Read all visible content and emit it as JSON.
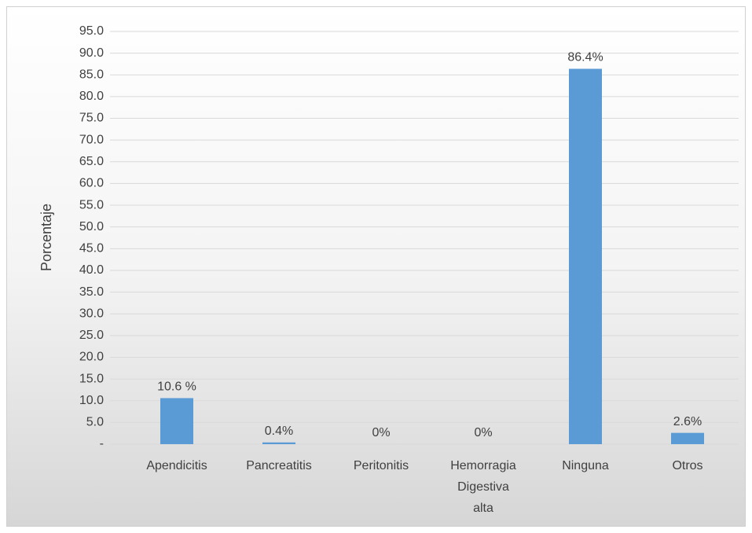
{
  "chart_data": {
    "type": "bar",
    "ylabel": "Porcentaje",
    "categories": [
      "Apendicitis",
      "Pancreatitis",
      "Peritonitis",
      "Hemorragia Digestiva alta",
      "Ninguna",
      "Otros"
    ],
    "values": [
      10.6,
      0.4,
      0,
      0,
      86.4,
      2.6
    ],
    "value_labels": [
      "10.6 %",
      "0.4%",
      "0%",
      "0%",
      "86.4%",
      "2.6%"
    ],
    "color": "#5b9bd5",
    "ylim": [
      0,
      95
    ],
    "yticks": [
      {
        "value": 0,
        "label": "-"
      },
      {
        "value": 5,
        "label": "5.0"
      },
      {
        "value": 10,
        "label": "10.0"
      },
      {
        "value": 15,
        "label": "15.0"
      },
      {
        "value": 20,
        "label": "20.0"
      },
      {
        "value": 25,
        "label": "25.0"
      },
      {
        "value": 30,
        "label": "30.0"
      },
      {
        "value": 35,
        "label": "35.0"
      },
      {
        "value": 40,
        "label": "40.0"
      },
      {
        "value": 45,
        "label": "45.0"
      },
      {
        "value": 50,
        "label": "50.0"
      },
      {
        "value": 55,
        "label": "55.0"
      },
      {
        "value": 60,
        "label": "60.0"
      },
      {
        "value": 65,
        "label": "65.0"
      },
      {
        "value": 70,
        "label": "70.0"
      },
      {
        "value": 75,
        "label": "75.0"
      },
      {
        "value": 80,
        "label": "80.0"
      },
      {
        "value": 85,
        "label": "85.0"
      },
      {
        "value": 90,
        "label": "90.0"
      },
      {
        "value": 95,
        "label": "95.0"
      }
    ],
    "grid": true
  }
}
